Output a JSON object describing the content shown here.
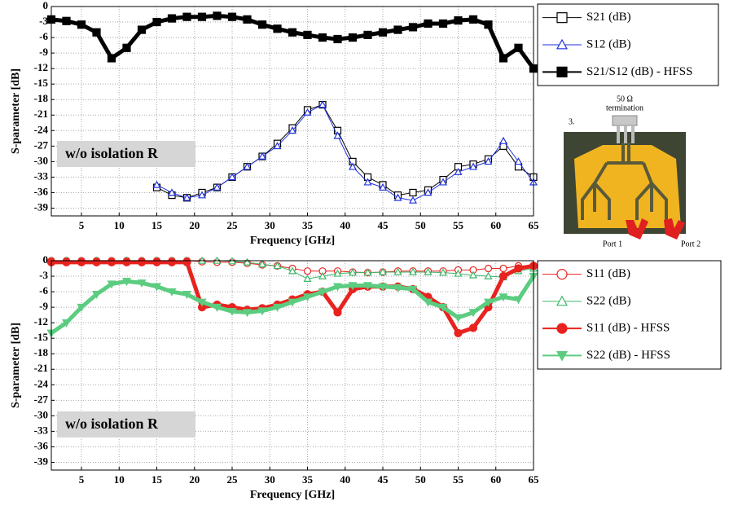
{
  "chart_data": [
    {
      "type": "line",
      "annotation": "w/o isolation R",
      "x_label": "Frequency [GHz]",
      "y_label": "S-parameter [dB]",
      "x": [
        1,
        3,
        5,
        7,
        9,
        11,
        13,
        15,
        17,
        19,
        21,
        23,
        25,
        27,
        29,
        31,
        33,
        35,
        37,
        39,
        41,
        43,
        45,
        47,
        49,
        51,
        53,
        55,
        57,
        59,
        61,
        63,
        65
      ],
      "xlim": [
        1,
        65
      ],
      "ylim": [
        -40.5,
        0
      ],
      "xticks": [
        5,
        10,
        15,
        20,
        25,
        30,
        35,
        40,
        45,
        50,
        55,
        60,
        65
      ],
      "yticks": [
        0,
        -3,
        -6,
        -9,
        -12,
        -15,
        -18,
        -21,
        -24,
        -27,
        -30,
        -33,
        -36,
        -39
      ],
      "grid": true,
      "series": [
        {
          "name": "S21 (dB)",
          "color": "#000000",
          "marker": "square",
          "filled": false,
          "values": [
            null,
            null,
            null,
            null,
            null,
            null,
            null,
            -35,
            -36.5,
            -37,
            -36,
            -35,
            -33,
            -31,
            -29,
            -26.5,
            -23.5,
            -20,
            -19,
            -24,
            -30,
            -33,
            -34.5,
            -36.5,
            -36,
            -35.5,
            -33.5,
            -31,
            -30.5,
            -29.5,
            -27,
            -31,
            -33
          ]
        },
        {
          "name": "S12 (dB)",
          "color": "#2233dd",
          "marker": "triangle",
          "filled": false,
          "values": [
            null,
            null,
            null,
            null,
            null,
            null,
            null,
            -34.5,
            -36,
            -37,
            -36.5,
            -35,
            -33,
            -31,
            -29,
            -27,
            -24,
            -20.5,
            -19,
            -25,
            -31,
            -34,
            -35,
            -37,
            -37.5,
            -36,
            -34,
            -32,
            -31,
            -30,
            -26,
            -30,
            -34
          ]
        },
        {
          "name": "S21/S12 (dB) - HFSS",
          "color": "#000000",
          "marker": "square",
          "filled": true,
          "values": [
            -2.5,
            -2.8,
            -3.5,
            -5,
            -10,
            -8,
            -4.5,
            -3,
            -2.3,
            -2,
            -2,
            -1.8,
            -2,
            -2.5,
            -3.5,
            -4.3,
            -5,
            -5.5,
            -6,
            -6.3,
            -6,
            -5.5,
            -5,
            -4.5,
            -4,
            -3.3,
            -3.3,
            -2.7,
            -2.5,
            -3.5,
            -10,
            -8,
            -12
          ]
        }
      ]
    },
    {
      "type": "line",
      "annotation": "w/o isolation R",
      "x_label": "Frequency [GHz]",
      "y_label": "S-parameter [dB]",
      "x": [
        1,
        3,
        5,
        7,
        9,
        11,
        13,
        15,
        17,
        19,
        21,
        23,
        25,
        27,
        29,
        31,
        33,
        35,
        37,
        39,
        41,
        43,
        45,
        47,
        49,
        51,
        53,
        55,
        57,
        59,
        61,
        63,
        65
      ],
      "xlim": [
        1,
        65
      ],
      "ylim": [
        -40.5,
        0
      ],
      "xticks": [
        5,
        10,
        15,
        20,
        25,
        30,
        35,
        40,
        45,
        50,
        55,
        60,
        65
      ],
      "yticks": [
        0,
        -3,
        -6,
        -9,
        -12,
        -15,
        -18,
        -21,
        -24,
        -27,
        -30,
        -33,
        -36,
        -39
      ],
      "grid": true,
      "series": [
        {
          "name": "S11 (dB)",
          "color": "#e8231f",
          "marker": "circle",
          "filled": false,
          "values": [
            0,
            0,
            0,
            0,
            0,
            0,
            0,
            0,
            0,
            0,
            -0.2,
            -0.3,
            -0.3,
            -0.5,
            -0.8,
            -1,
            -1.5,
            -2,
            -2,
            -2,
            -2.2,
            -2.3,
            -2.2,
            -2,
            -2,
            -2,
            -2,
            -1.8,
            -1.8,
            -1.5,
            -1.5,
            -1,
            -1
          ]
        },
        {
          "name": "S22 (dB)",
          "color": "#3cb86a",
          "marker": "triangle",
          "filled": false,
          "values": [
            0,
            0,
            0,
            0,
            0,
            0,
            0,
            0,
            0,
            0,
            0,
            0,
            -0.1,
            -0.3,
            -0.7,
            -1,
            -2,
            -3.5,
            -3,
            -2.5,
            -2.3,
            -2.3,
            -2.2,
            -2.2,
            -2.2,
            -2.2,
            -2.3,
            -2.5,
            -2.8,
            -3,
            -3.2,
            -2,
            -1.5
          ]
        },
        {
          "name": "S11 (dB) - HFSS",
          "color": "#e8231f",
          "marker": "circle",
          "filled": true,
          "values": [
            -0.3,
            -0.3,
            -0.3,
            -0.3,
            -0.3,
            -0.3,
            -0.3,
            -0.3,
            -0.3,
            -0.3,
            -9,
            -8.5,
            -9,
            -9.5,
            -9.2,
            -8.5,
            -7.5,
            -6.5,
            -6,
            -10,
            -5.5,
            -5,
            -5,
            -5,
            -5.5,
            -7,
            -9,
            -14,
            -13,
            -9,
            -3,
            -1.5,
            -1
          ]
        },
        {
          "name": "S22 (dB) - HFSS",
          "color": "#5ccc80",
          "marker": "triangle",
          "filled": true,
          "values": [
            -14,
            -12,
            -9,
            -6.5,
            -4.5,
            -4,
            -4.3,
            -5,
            -6,
            -6.5,
            -8,
            -9,
            -9.8,
            -10,
            -9.7,
            -9,
            -8,
            -7,
            -6,
            -5,
            -4.8,
            -4.8,
            -5,
            -5.2,
            -5.5,
            -8,
            -9,
            -11,
            -10,
            -8,
            -7,
            -7.5,
            -3
          ]
        }
      ]
    }
  ],
  "inset": {
    "label": "3.",
    "termination_value": "50 Ω",
    "termination_text": "termination",
    "ports": [
      "Port 1",
      "Port 2"
    ]
  }
}
